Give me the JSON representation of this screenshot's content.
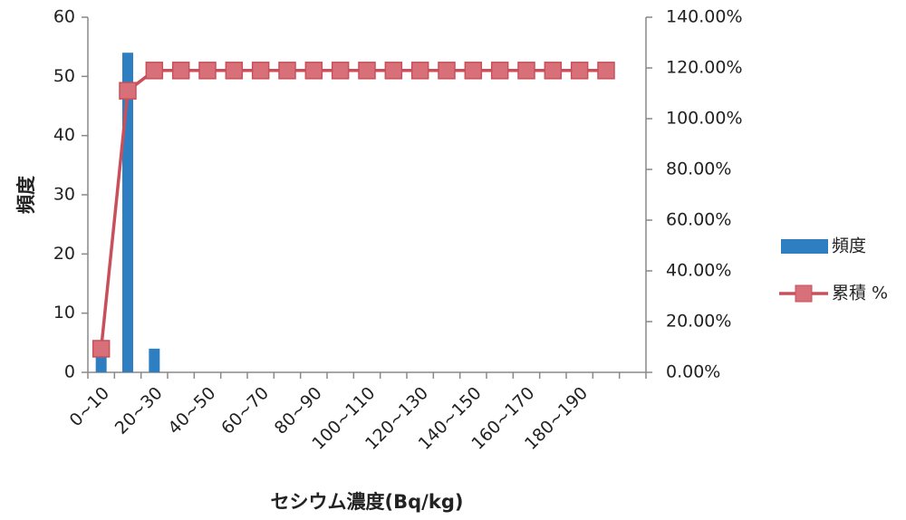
{
  "chart_data": {
    "type": "bar-line",
    "x_label": "セシウム濃度(Bq/kg)",
    "y_label": "頻度",
    "categories": [
      "0~10",
      null,
      "20~30",
      null,
      "40~50",
      null,
      "60~70",
      null,
      "80~90",
      null,
      "100~110",
      null,
      "120~130",
      null,
      "140~150",
      null,
      "160~170",
      null,
      "180~190",
      null
    ],
    "series": [
      {
        "name": "頻度",
        "type": "bar",
        "color": "#2e7fc1",
        "values": [
          3,
          54,
          4,
          0,
          0,
          0,
          0,
          0,
          0,
          0,
          0,
          0,
          0,
          0,
          0,
          0,
          0,
          0,
          0,
          0
        ]
      },
      {
        "name": "累積 %",
        "type": "line",
        "axis": "y2",
        "color": "#c9505a",
        "values": [
          9.3,
          111,
          119,
          119,
          119,
          119,
          119,
          119,
          119,
          119,
          119,
          119,
          119,
          119,
          119,
          119,
          119,
          119,
          119,
          119
        ]
      }
    ],
    "ylim": [
      0,
      60
    ],
    "yticks": [
      0,
      10,
      20,
      30,
      40,
      50,
      60
    ],
    "y2lim": [
      0,
      140
    ],
    "y2ticks": [
      {
        "value": 0,
        "label": "0.00%"
      },
      {
        "value": 20,
        "label": "20.00%"
      },
      {
        "value": 40,
        "label": "40.00%"
      },
      {
        "value": 60,
        "label": "60.00%"
      },
      {
        "value": 80,
        "label": "80.00%"
      },
      {
        "value": 100,
        "label": "100.00%"
      },
      {
        "value": 120,
        "label": "120.00%"
      },
      {
        "value": 140,
        "label": "140.00%"
      }
    ],
    "legend": "right"
  }
}
